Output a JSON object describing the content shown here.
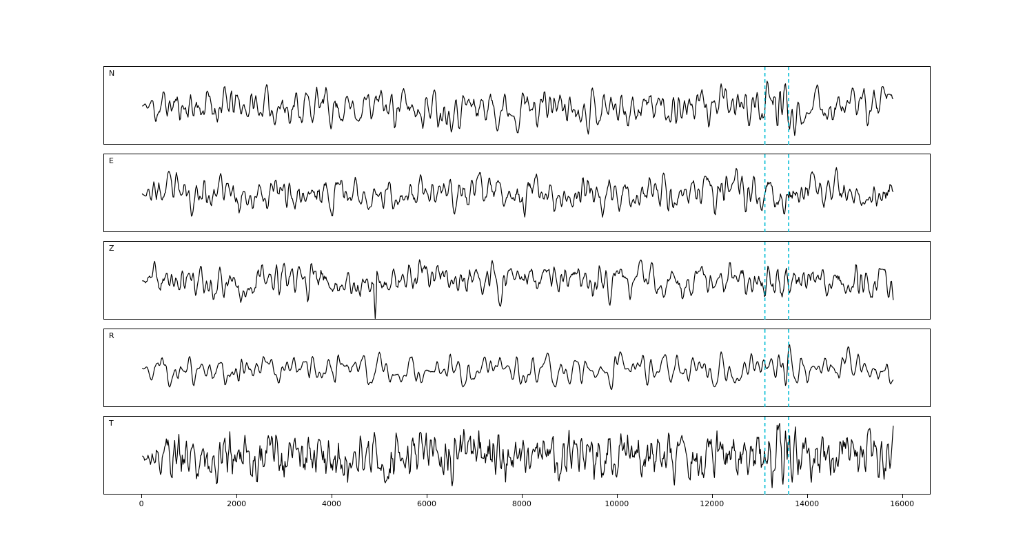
{
  "figure": {
    "background": "#ffffff",
    "kind": "seismic-trace-figure"
  },
  "chart_data": {
    "type": "line",
    "title": "",
    "xlabel": "",
    "ylabel": "",
    "grid": false,
    "legend": "none",
    "x_ticks": [
      0,
      2000,
      4000,
      6000,
      8000,
      10000,
      12000,
      14000,
      16000
    ],
    "x_range": [
      -800,
      16600
    ],
    "x_data_range": [
      0,
      15800
    ],
    "n_points": 900,
    "line_color": "#000000",
    "line_width": 1.2,
    "marker_lines": [
      13100,
      13600
    ],
    "marker_color": "#00bcd4",
    "marker_style": "dashed",
    "panels": [
      {
        "label": "N",
        "seed": 11,
        "amplitude": 0.8,
        "smooth": 2,
        "burst_gain": 1.7,
        "burst_center": 13500,
        "burst_width": 260
      },
      {
        "label": "E",
        "seed": 23,
        "amplitude": 0.74,
        "smooth": 2,
        "burst_gain": 1.9,
        "burst_center": 13450,
        "burst_width": 220
      },
      {
        "label": "Z",
        "seed": 37,
        "amplitude": 0.72,
        "smooth": 2,
        "burst_gain": 1.15,
        "burst_center": 13400,
        "burst_width": 240,
        "spike_x": 4900,
        "spike_amp": -1.85
      },
      {
        "label": "R",
        "seed": 47,
        "amplitude": 0.62,
        "smooth": 3,
        "burst_gain": 2.1,
        "burst_center": 13520,
        "burst_width": 200
      },
      {
        "label": "T",
        "seed": 59,
        "amplitude": 0.86,
        "smooth": 1,
        "burst_gain": 1.6,
        "burst_center": 13520,
        "burst_width": 220
      }
    ]
  }
}
